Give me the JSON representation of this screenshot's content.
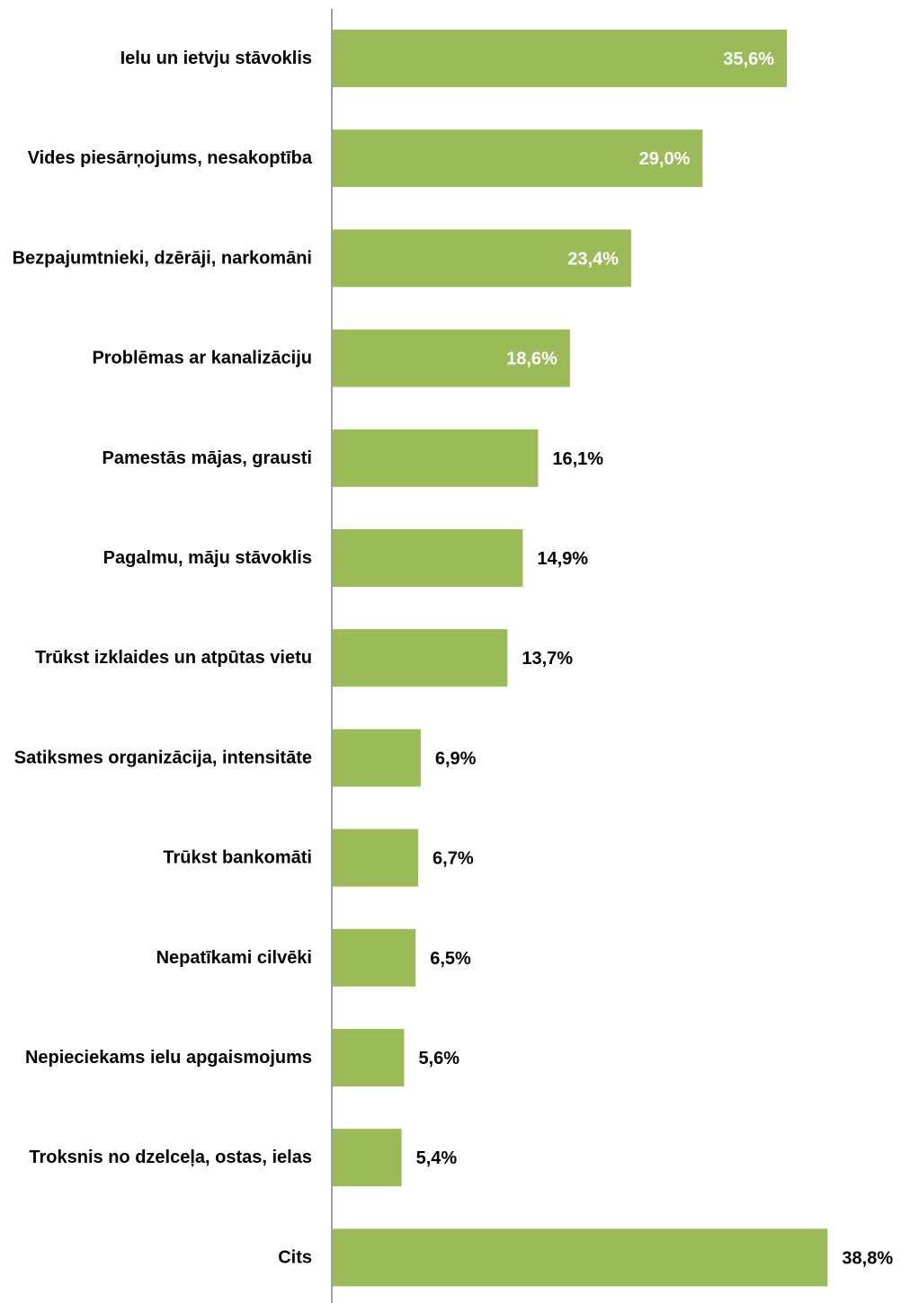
{
  "chart_data": {
    "type": "bar",
    "orientation": "horizontal",
    "categories": [
      "Ielu un ietvju stāvoklis",
      "Vides piesārņojums, nesakoptība",
      "Bezpajumtnieki, dzērāji, narkomāni",
      "Problēmas ar kanalizāciju",
      "Pamestās mājas, grausti",
      "Pagalmu, māju stāvoklis",
      "Trūkst izklaides un atpūtas vietu",
      "Satiksmes organizācija, intensitāte",
      "Trūkst bankomāti",
      "Nepatīkami cilvēki",
      "Nepieciekams ielu apgaismojums",
      "Troksnis no dzelceļa, ostas, ielas",
      "Cits"
    ],
    "values": [
      35.6,
      29.0,
      23.4,
      18.6,
      16.1,
      14.9,
      13.7,
      6.9,
      6.7,
      6.5,
      5.6,
      5.4,
      38.8
    ],
    "value_labels": [
      "35,6%",
      "29,0%",
      "23,4%",
      "18,6%",
      "16,1%",
      "14,9%",
      "13,7%",
      "6,9%",
      "6,7%",
      "6,5%",
      "5,6%",
      "5,4%",
      "38,8%"
    ],
    "label_inside": [
      true,
      true,
      true,
      true,
      false,
      false,
      false,
      false,
      false,
      false,
      false,
      false,
      false
    ],
    "bar_color": "#9bbb59",
    "inside_label_color": "#ffffff",
    "outside_label_color": "#000000",
    "axis_color": "#808080",
    "grid": false,
    "legend": "none"
  }
}
